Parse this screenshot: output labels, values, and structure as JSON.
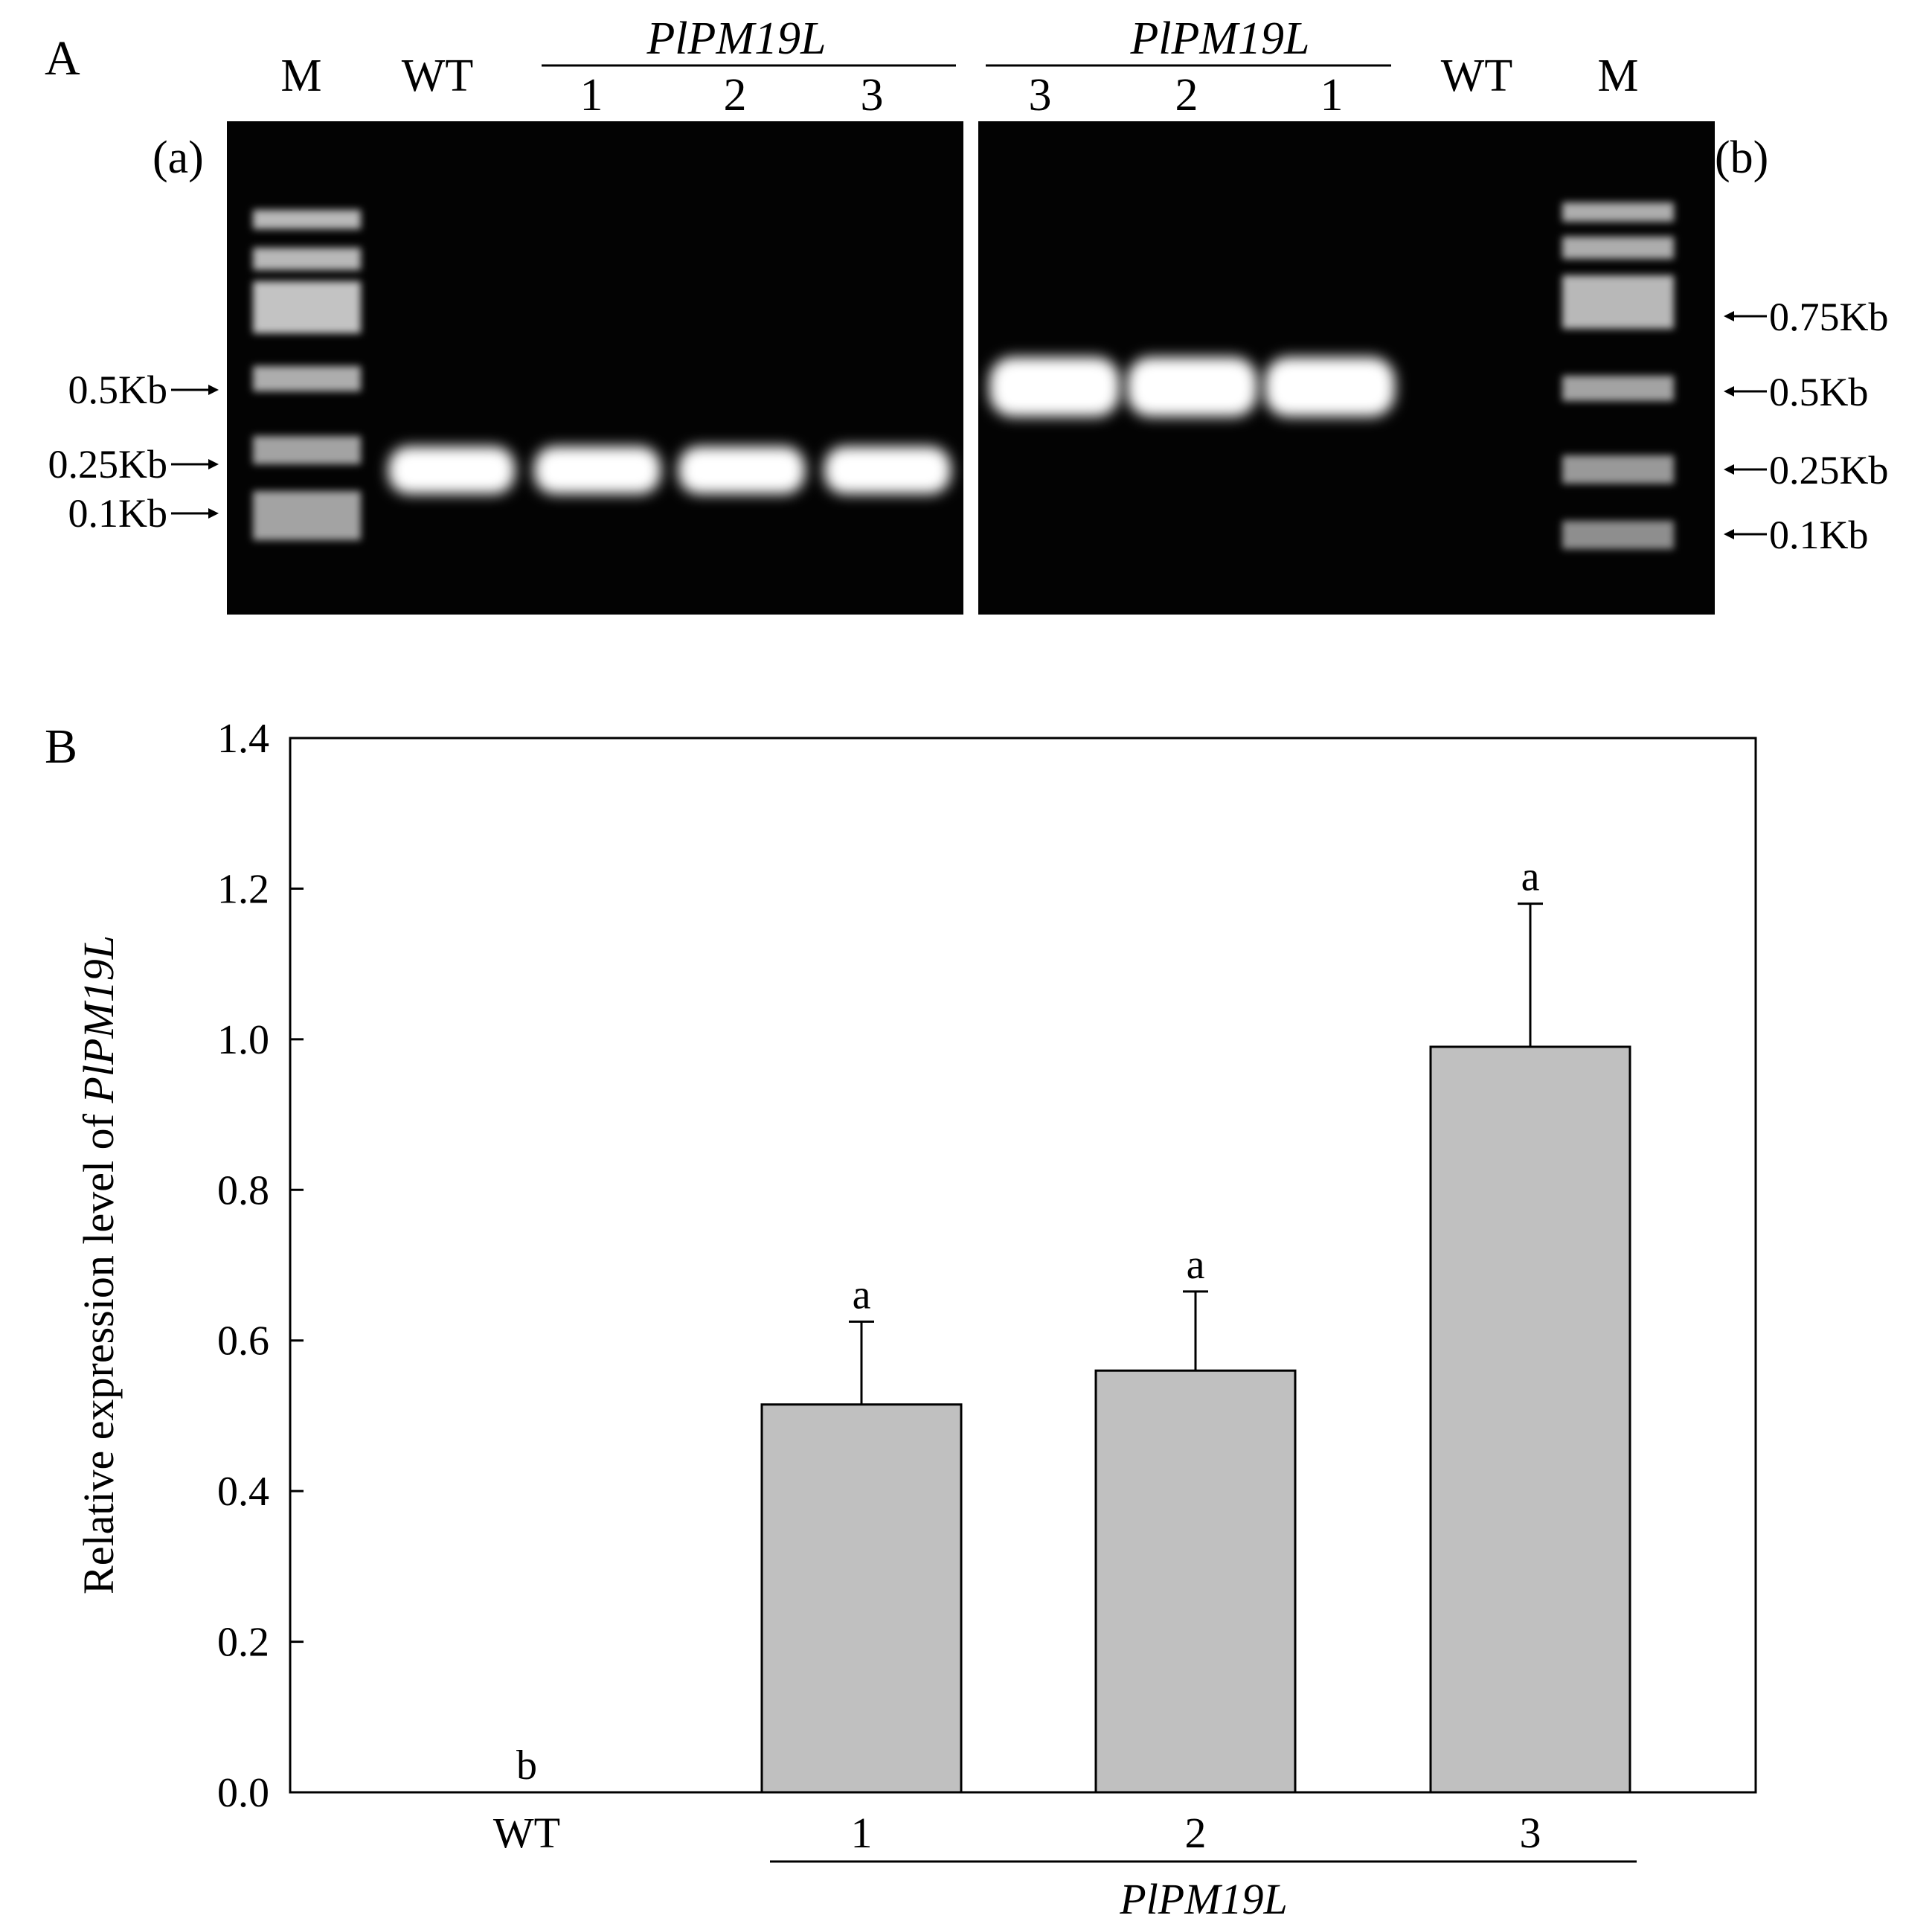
{
  "panel_a": {
    "label": "A",
    "gel_a": {
      "tag": "(a)",
      "lanes": [
        "M",
        "WT",
        "1",
        "2",
        "3"
      ],
      "group_label": "PlPM19L",
      "markers": [
        "0.5Kb",
        "0.25Kb",
        "0.1Kb"
      ]
    },
    "gel_b": {
      "tag": "(b)",
      "lanes": [
        "3",
        "2",
        "1",
        "WT",
        "M"
      ],
      "group_label": "PlPM19L",
      "markers": [
        "0.75Kb",
        "0.5Kb",
        "0.25Kb",
        "0.1Kb"
      ]
    }
  },
  "panel_b": {
    "label": "B"
  },
  "chart_data": {
    "type": "bar",
    "categories": [
      "WT",
      "1",
      "2",
      "3"
    ],
    "values": [
      0.0,
      0.515,
      0.56,
      0.99
    ],
    "errors": [
      0.0,
      0.11,
      0.105,
      0.19
    ],
    "significance": [
      "b",
      "a",
      "a",
      "a"
    ],
    "ylabel_prefix": "Relative expression level of ",
    "ylabel_gene": "PlPM19L",
    "group_label": "PlPM19L",
    "ylim": [
      0,
      1.4
    ],
    "yticks": [
      "0.0",
      "0.2",
      "0.4",
      "0.6",
      "0.8",
      "1.0",
      "1.2",
      "1.4"
    ],
    "bar_color": "#c0c0c0"
  }
}
